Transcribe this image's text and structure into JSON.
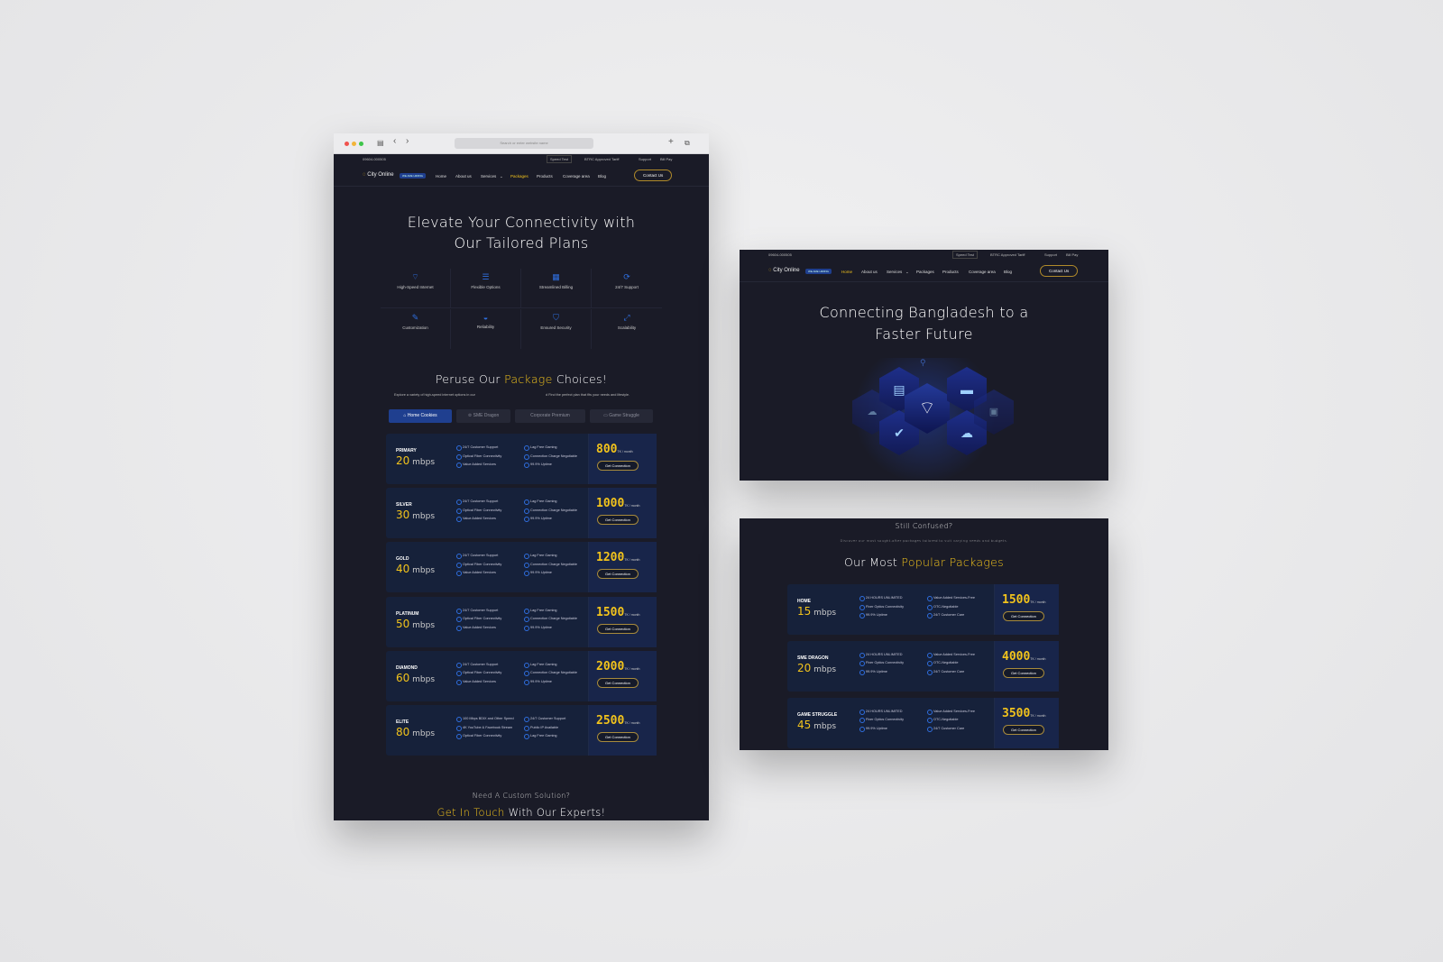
{
  "browser": {
    "url_placeholder": "Search or enter website name"
  },
  "site": {
    "phone": "09604-000505",
    "topbar": [
      "Speed Test",
      "BTRC Approved Tariff",
      "Support",
      "Bill Pay"
    ],
    "logo": "City Online",
    "hiring_badge": "WE ARE HIRING",
    "nav": [
      "Home",
      "About us",
      "Services",
      "Packages",
      "Products",
      "Coverage area",
      "Blog"
    ],
    "contact": "Contact Us"
  },
  "packages_page": {
    "active_nav": "Packages",
    "title_line1": "Elevate Your Connectivity with",
    "title_line2": "Our Tailored Plans",
    "features": [
      {
        "label": "High-Speed Internet",
        "icon": "wifi-icon"
      },
      {
        "label": "Flexible Options",
        "icon": "list-icon"
      },
      {
        "label": "Streamlined Billing",
        "icon": "billing-icon"
      },
      {
        "label": "24/7 Support",
        "icon": "support-icon"
      },
      {
        "label": "Customization",
        "icon": "customize-icon"
      },
      {
        "label": "Reliability",
        "icon": "reliability-icon"
      },
      {
        "label": "Ensured Security",
        "icon": "shield-icon"
      },
      {
        "label": "Scalability",
        "icon": "scale-icon"
      }
    ],
    "section_title_a": "Peruse Our ",
    "section_title_b": "Package",
    "section_title_c": " Choices!",
    "section_sub_a": "Explore a variety of high-speed internet options in our",
    "section_sub_b": "d Find the perfect plan that fits your needs and lifestyle.",
    "tabs": [
      "Home Cookies",
      "SME Dragon",
      "Corporate Premium",
      "Game Struggle"
    ],
    "active_tab": "Home Cookies",
    "plans": [
      {
        "tier": "PRIMARY",
        "speed": "20",
        "unit": "mbps",
        "price": "800",
        "per": "TK / month",
        "col1": [
          "24/7 Customer Support",
          "Optical Fiber Connectivity",
          "Value Added Services"
        ],
        "col2": [
          "Lag Free Gaming",
          "Connection Charge Negotiable",
          "99.9% Uptime"
        ],
        "button": "Get Connection"
      },
      {
        "tier": "SILVER",
        "speed": "30",
        "unit": "mbps",
        "price": "1000",
        "per": "TK / month",
        "col1": [
          "24/7 Customer Support",
          "Optical Fiber Connectivity",
          "Value Added Services"
        ],
        "col2": [
          "Lag Free Gaming",
          "Connection Charge Negotiable",
          "99.9% Uptime"
        ],
        "button": "Get Connection"
      },
      {
        "tier": "GOLD",
        "speed": "40",
        "unit": "mbps",
        "price": "1200",
        "per": "TK / month",
        "col1": [
          "24/7 Customer Support",
          "Optical Fiber Connectivity",
          "Value Added Services"
        ],
        "col2": [
          "Lag Free Gaming",
          "Connection Charge Negotiable",
          "99.9% Uptime"
        ],
        "button": "Get Connection"
      },
      {
        "tier": "PLATINUM",
        "speed": "50",
        "unit": "mbps",
        "price": "1500",
        "per": "TK / month",
        "col1": [
          "24/7 Customer Support",
          "Optical Fiber Connectivity",
          "Value Added Services"
        ],
        "col2": [
          "Lag Free Gaming",
          "Connection Charge Negotiable",
          "99.9% Uptime"
        ],
        "button": "Get Connection"
      },
      {
        "tier": "DIAMOND",
        "speed": "60",
        "unit": "mbps",
        "price": "2000",
        "per": "TK / month",
        "col1": [
          "24/7 Customer Support",
          "Optical Fiber Connectivity",
          "Value Added Services"
        ],
        "col2": [
          "Lag Free Gaming",
          "Connection Charge Negotiable",
          "99.9% Uptime"
        ],
        "button": "Get Connection"
      },
      {
        "tier": "ELITE",
        "speed": "80",
        "unit": "mbps",
        "price": "2500",
        "per": "TK / month",
        "col1": [
          "100 Mbps BDIX and Other Speed",
          "4K YouTube & Facebook Stream",
          "Optical Fiber Connectivity"
        ],
        "col2": [
          "24/7 Customer Support",
          "Public IP Available",
          "Lag Free Gaming"
        ],
        "button": "Get Connection"
      }
    ],
    "custom_q": "Need A Custom Solution?",
    "custom_a": "Get In Touch",
    "custom_b": " With Our Experts!"
  },
  "home_page": {
    "active_nav": "Home",
    "title_line1": "Connecting Bangladesh to a",
    "title_line2": "Faster Future"
  },
  "popular": {
    "q": "Still Confused?",
    "sub": "Discover our most sought-after packages tailored to suit varying needs and budgets.",
    "title_a": "Our Most ",
    "title_b": "Popular Packages",
    "plans": [
      {
        "tier": "HOME",
        "speed": "15",
        "unit": "mbps",
        "price": "1500",
        "per": "TK / month",
        "col1": [
          "24 HOURS UNLIMITED",
          "Fiver Optics Connectivity",
          "99.9% Uptime"
        ],
        "col2": [
          "Value Added Services-Free",
          "OTC-Negotiable",
          "24/7 Customer Care"
        ],
        "button": "Get Connection"
      },
      {
        "tier": "SME DRAGON",
        "speed": "20",
        "unit": "mbps",
        "price": "4000",
        "per": "TK / month",
        "col1": [
          "24 HOURS UNLIMITED",
          "Fiver Optics Connectivity",
          "99.9% Uptime"
        ],
        "col2": [
          "Value Added Services-Free",
          "OTC-Negotiable",
          "24/7 Customer Care"
        ],
        "button": "Get Connection"
      },
      {
        "tier": "GAME STRUGGLE",
        "speed": "45",
        "unit": "mbps",
        "price": "3500",
        "per": "TK / month",
        "col1": [
          "24 HOURS UNLIMITED",
          "Fiver Optics Connectivity",
          "99.9% Uptime"
        ],
        "col2": [
          "Value Added Services-Free",
          "OTC-Negotiable",
          "24/7 Customer Care"
        ],
        "button": "Get Connection"
      }
    ]
  },
  "colors": {
    "accent": "#f2c31c",
    "blue": "#2f6fe0",
    "background": "#1a1b27",
    "card": "#16213a"
  }
}
